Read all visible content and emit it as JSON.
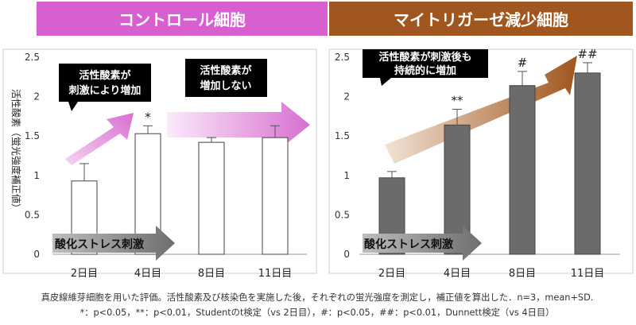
{
  "ylabel": "活性酸素（蛍光強度補正値）",
  "stress_label": "酸化ストレス刺激",
  "caption": {
    "line1": "真皮線維芽細胞を用いた評価。活性酸素及び核染色を実施した後，それぞれの蛍光強度を測定し，補正値を算出した．n=3，mean+SD.",
    "line2": "*：p<0.05，**：p<0.01，Studentのt検定（vs 2日目），#：p<0.05，##：p<0.01，Dunnett検定（vs 4日目）"
  },
  "colors": {
    "control_header": "#d85fd0",
    "deficient_header": "#a0561e",
    "control_bar": "#ffffff",
    "deficient_bar": "#6b6b6b",
    "callout_bg": "#000000"
  },
  "chart_data": [
    {
      "type": "bar",
      "title": "コントロール細胞",
      "categories": [
        "2日目",
        "4日目",
        "8日目",
        "11日目"
      ],
      "values": [
        0.93,
        1.53,
        1.42,
        1.48
      ],
      "errors": [
        0.22,
        0.1,
        0.06,
        0.15
      ],
      "significance": [
        "",
        "*",
        "",
        ""
      ],
      "ylim": [
        0,
        2.5
      ],
      "yticks": [
        "0",
        "0.5",
        "1",
        "1.5",
        "2",
        "2.5"
      ],
      "annotations": [
        "活性酸素が\n刺激により増加",
        "活性酸素が\n増加しない"
      ]
    },
    {
      "type": "bar",
      "title": "マイトリガーゼ減少細胞",
      "categories": [
        "2日目",
        "4日目",
        "8日目",
        "11日目"
      ],
      "values": [
        0.97,
        1.64,
        2.14,
        2.3
      ],
      "errors": [
        0.08,
        0.2,
        0.18,
        0.13
      ],
      "significance": [
        "",
        "**",
        "#",
        "##"
      ],
      "ylim": [
        0,
        2.5
      ],
      "yticks": [
        "0",
        "0.5",
        "1",
        "1.5",
        "2",
        "2.5"
      ],
      "annotations": [
        "活性酸素が刺激後も\n持続的に増加"
      ]
    }
  ]
}
